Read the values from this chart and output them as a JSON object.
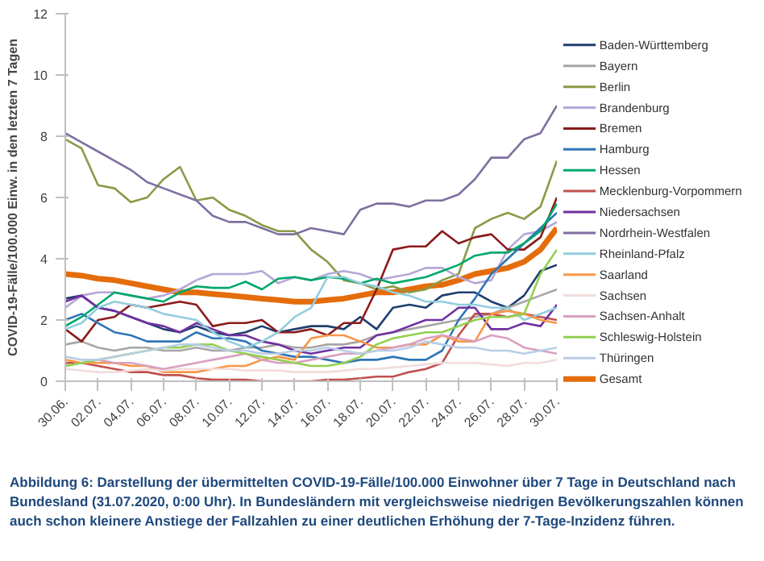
{
  "chart_data": {
    "type": "line",
    "ylabel": "COVID-19-Fälle/100.000 Einw. in den letzten 7 Tagen",
    "x": [
      "2020-06-30",
      "2020-07-01",
      "2020-07-02",
      "2020-07-03",
      "2020-07-04",
      "2020-07-05",
      "2020-07-06",
      "2020-07-07",
      "2020-07-08",
      "2020-07-09",
      "2020-07-10",
      "2020-07-11",
      "2020-07-12",
      "2020-07-13",
      "2020-07-14",
      "2020-07-15",
      "2020-07-16",
      "2020-07-17",
      "2020-07-18",
      "2020-07-19",
      "2020-07-20",
      "2020-07-21",
      "2020-07-22",
      "2020-07-23",
      "2020-07-24",
      "2020-07-25",
      "2020-07-26",
      "2020-07-27",
      "2020-07-28",
      "2020-07-29",
      "2020-07-30"
    ],
    "xlim": [
      "2020-06-30",
      "2020-07-30"
    ],
    "xticks": [
      {
        "value": "2020-06-30",
        "label": "30.06."
      },
      {
        "value": "2020-07-02",
        "label": "02.07."
      },
      {
        "value": "2020-07-04",
        "label": "04.07."
      },
      {
        "value": "2020-07-06",
        "label": "06.07."
      },
      {
        "value": "2020-07-08",
        "label": "08.07."
      },
      {
        "value": "2020-07-10",
        "label": "10.07."
      },
      {
        "value": "2020-07-12",
        "label": "12.07."
      },
      {
        "value": "2020-07-14",
        "label": "14.07."
      },
      {
        "value": "2020-07-16",
        "label": "16.07."
      },
      {
        "value": "2020-07-18",
        "label": "18.07."
      },
      {
        "value": "2020-07-20",
        "label": "20.07."
      },
      {
        "value": "2020-07-22",
        "label": "22.07."
      },
      {
        "value": "2020-07-24",
        "label": "24.07."
      },
      {
        "value": "2020-07-26",
        "label": "26.07."
      },
      {
        "value": "2020-07-28",
        "label": "28.07."
      },
      {
        "value": "2020-07-30",
        "label": "30.07."
      }
    ],
    "ylim": [
      0,
      12
    ],
    "yticks": [
      0,
      2,
      4,
      6,
      8,
      10,
      12
    ],
    "grid": false,
    "legend": "right",
    "marker": "none",
    "line_style": "solid",
    "series": [
      {
        "name": "Baden-Württemberg",
        "color": "#1f3e6e",
        "values": [
          2.7,
          2.8,
          2.4,
          2.3,
          2.1,
          1.9,
          1.7,
          1.6,
          1.8,
          1.6,
          1.5,
          1.6,
          1.8,
          1.6,
          1.7,
          1.8,
          1.8,
          1.7,
          2.1,
          1.7,
          2.4,
          2.5,
          2.4,
          2.8,
          2.9,
          2.9,
          2.6,
          2.4,
          2.8,
          3.6,
          3.8
        ]
      },
      {
        "name": "Bayern",
        "color": "#a6a6a6",
        "values": [
          1.2,
          1.3,
          1.1,
          1.0,
          1.1,
          1.1,
          1.0,
          1.0,
          1.1,
          1.0,
          1.0,
          1.1,
          1.1,
          1.2,
          1.1,
          1.1,
          1.2,
          1.2,
          1.3,
          1.5,
          1.6,
          1.7,
          1.8,
          1.9,
          2.0,
          2.1,
          2.2,
          2.4,
          2.6,
          2.8,
          3.0
        ]
      },
      {
        "name": "Berlin",
        "color": "#8a9a46",
        "values": [
          7.9,
          7.6,
          6.4,
          6.3,
          5.85,
          6.0,
          6.6,
          7.0,
          5.9,
          6.0,
          5.6,
          5.4,
          5.1,
          4.9,
          4.9,
          4.3,
          3.9,
          3.3,
          3.2,
          3.0,
          3.1,
          2.9,
          3.0,
          3.3,
          3.5,
          5.0,
          5.3,
          5.5,
          5.3,
          5.7,
          7.2
        ]
      },
      {
        "name": "Brandenburg",
        "color": "#b4a7d6",
        "values": [
          2.4,
          2.8,
          2.9,
          2.9,
          2.8,
          2.7,
          2.8,
          3.0,
          3.3,
          3.5,
          3.5,
          3.5,
          3.6,
          3.2,
          3.4,
          3.3,
          3.5,
          3.6,
          3.5,
          3.3,
          3.4,
          3.5,
          3.7,
          3.7,
          3.4,
          3.2,
          3.3,
          4.3,
          4.8,
          4.9,
          5.2
        ]
      },
      {
        "name": "Bremen",
        "color": "#8b1a1a",
        "values": [
          1.7,
          1.3,
          2.0,
          2.1,
          2.5,
          2.4,
          2.5,
          2.6,
          2.5,
          1.8,
          1.9,
          1.9,
          2.0,
          1.6,
          1.6,
          1.7,
          1.5,
          1.9,
          1.9,
          3.0,
          4.3,
          4.4,
          4.4,
          4.9,
          4.5,
          4.7,
          4.8,
          4.3,
          4.3,
          4.7,
          6.0
        ]
      },
      {
        "name": "Hamburg",
        "color": "#2e75b6",
        "values": [
          2.0,
          2.2,
          1.9,
          1.6,
          1.5,
          1.3,
          1.3,
          1.3,
          1.6,
          1.4,
          1.4,
          1.3,
          1.0,
          0.9,
          0.8,
          0.8,
          0.7,
          0.6,
          0.7,
          0.7,
          0.8,
          0.7,
          0.7,
          1.0,
          2.0,
          2.7,
          3.5,
          4.0,
          4.5,
          5.0,
          5.5
        ]
      },
      {
        "name": "Hessen",
        "color": "#00a86b",
        "values": [
          1.8,
          2.1,
          2.5,
          2.9,
          2.8,
          2.7,
          2.6,
          2.9,
          3.1,
          3.05,
          3.05,
          3.25,
          3.0,
          3.35,
          3.4,
          3.3,
          3.4,
          3.35,
          3.2,
          3.35,
          3.2,
          3.3,
          3.4,
          3.6,
          3.8,
          4.1,
          4.2,
          4.2,
          4.5,
          4.9,
          5.8
        ]
      },
      {
        "name": "Mecklenburg-Vorpommern",
        "color": "#c0504d",
        "values": [
          0.6,
          0.6,
          0.5,
          0.4,
          0.3,
          0.3,
          0.2,
          0.2,
          0.1,
          0.05,
          0.05,
          0.05,
          0.0,
          0.0,
          0.0,
          0.0,
          0.05,
          0.05,
          0.1,
          0.15,
          0.15,
          0.3,
          0.4,
          0.6,
          1.5,
          2.2,
          2.2,
          2.1,
          2.2,
          2.1,
          2.0
        ]
      },
      {
        "name": "Niedersachsen",
        "color": "#7030a0",
        "values": [
          2.6,
          2.8,
          2.4,
          2.3,
          2.1,
          1.9,
          1.8,
          1.6,
          1.9,
          1.7,
          1.5,
          1.5,
          1.3,
          1.2,
          1.0,
          0.9,
          1.0,
          1.1,
          1.1,
          1.5,
          1.6,
          1.8,
          2.0,
          2.0,
          2.4,
          2.4,
          1.7,
          1.7,
          1.9,
          1.8,
          2.5
        ]
      },
      {
        "name": "Nordrhein-Westfalen",
        "color": "#7f6fa0",
        "values": [
          8.1,
          7.8,
          7.5,
          7.2,
          6.9,
          6.5,
          6.3,
          6.1,
          5.9,
          5.4,
          5.2,
          5.2,
          5.0,
          4.8,
          4.8,
          5.0,
          4.9,
          4.8,
          5.6,
          5.8,
          5.8,
          5.7,
          5.9,
          5.9,
          6.1,
          6.6,
          7.3,
          7.3,
          7.9,
          8.1,
          9.0
        ]
      },
      {
        "name": "Rheinland-Pfalz",
        "color": "#93cddd",
        "values": [
          1.7,
          1.9,
          2.4,
          2.6,
          2.5,
          2.4,
          2.2,
          2.1,
          2.0,
          1.6,
          1.3,
          1.1,
          1.3,
          1.6,
          2.1,
          2.4,
          3.4,
          3.4,
          3.2,
          3.1,
          2.9,
          2.8,
          2.6,
          2.6,
          2.5,
          2.5,
          2.4,
          2.4,
          2.0,
          2.2,
          2.4
        ]
      },
      {
        "name": "Saarland",
        "color": "#f79646",
        "values": [
          0.7,
          0.6,
          0.6,
          0.6,
          0.5,
          0.5,
          0.3,
          0.3,
          0.3,
          0.4,
          0.5,
          0.5,
          0.7,
          0.8,
          0.7,
          1.4,
          1.5,
          1.5,
          1.3,
          1.1,
          1.1,
          1.2,
          1.2,
          1.5,
          1.3,
          1.3,
          2.2,
          2.3,
          2.2,
          2.0,
          1.9
        ]
      },
      {
        "name": "Sachsen",
        "color": "#f2dcdb",
        "values": [
          0.4,
          0.35,
          0.3,
          0.3,
          0.35,
          0.4,
          0.35,
          0.4,
          0.4,
          0.4,
          0.4,
          0.35,
          0.35,
          0.35,
          0.3,
          0.3,
          0.3,
          0.35,
          0.4,
          0.4,
          0.45,
          0.5,
          0.55,
          0.6,
          0.6,
          0.6,
          0.55,
          0.5,
          0.6,
          0.6,
          0.7
        ]
      },
      {
        "name": "Sachsen-Anhalt",
        "color": "#d9a0c0",
        "values": [
          0.5,
          0.6,
          0.7,
          0.6,
          0.6,
          0.5,
          0.4,
          0.5,
          0.6,
          0.7,
          0.8,
          0.9,
          0.7,
          0.6,
          0.6,
          0.7,
          0.8,
          0.9,
          0.9,
          1.0,
          1.1,
          1.2,
          1.4,
          1.5,
          1.4,
          1.3,
          1.5,
          1.4,
          1.1,
          1.0,
          0.9
        ]
      },
      {
        "name": "Schleswig-Holstein",
        "color": "#92d050",
        "values": [
          0.5,
          0.6,
          0.7,
          0.8,
          0.9,
          1.0,
          1.1,
          1.1,
          1.2,
          1.2,
          1.0,
          0.9,
          0.8,
          0.7,
          0.6,
          0.5,
          0.5,
          0.6,
          0.8,
          1.2,
          1.4,
          1.5,
          1.6,
          1.6,
          1.8,
          2.0,
          2.1,
          2.1,
          2.2,
          3.5,
          4.3
        ]
      },
      {
        "name": "Thüringen",
        "color": "#b9cde5",
        "values": [
          0.8,
          0.7,
          0.7,
          0.8,
          0.9,
          1.0,
          1.1,
          1.2,
          1.2,
          1.1,
          1.0,
          1.0,
          0.9,
          0.9,
          1.0,
          1.0,
          1.1,
          1.0,
          0.9,
          1.0,
          1.0,
          1.1,
          1.3,
          1.2,
          1.1,
          1.1,
          1.0,
          1.0,
          0.9,
          1.0,
          1.1
        ]
      },
      {
        "name": "Gesamt",
        "color": "#e46c0a",
        "values": [
          3.5,
          3.45,
          3.35,
          3.3,
          3.2,
          3.1,
          3.0,
          2.9,
          2.9,
          2.85,
          2.8,
          2.75,
          2.7,
          2.65,
          2.6,
          2.6,
          2.65,
          2.7,
          2.8,
          2.9,
          2.9,
          3.0,
          3.1,
          3.15,
          3.3,
          3.5,
          3.6,
          3.7,
          3.9,
          4.3,
          5.0
        ]
      }
    ],
    "annotations": [
      "Abbildung 6: Darstellung der übermittelten COVID-19-Fälle/100.000 Einwohner über 7 Tage in Deutschland nach Bundesland (31.07.2020, 0:00 Uhr). In Bundesländern mit vergleichsweise niedrigen Bevölkerungszahlen können auch schon kleinere Anstiege der Fallzahlen zu einer deutlichen Erhöhung der 7-Tage-Inzidenz führen."
    ]
  }
}
